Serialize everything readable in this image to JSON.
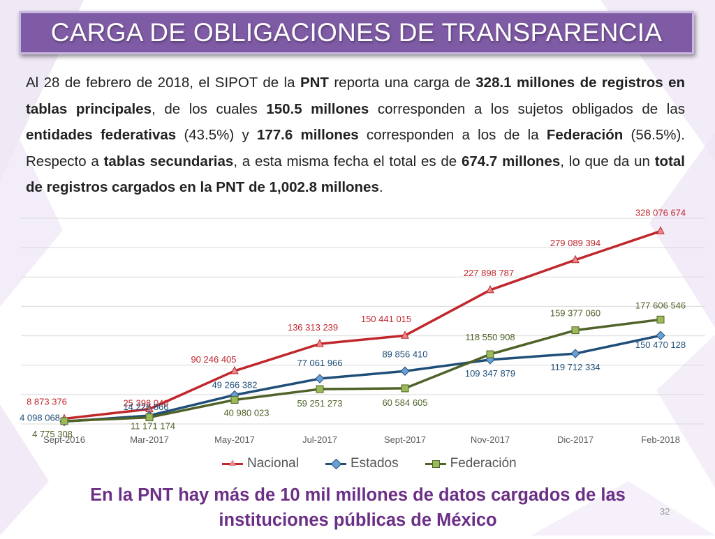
{
  "slide": {
    "title": "CARGA DE OBLIGACIONES DE TRANSPARENCIA",
    "intro": [
      {
        "text": "Al 28 de febrero de 2018, el SIPOT de la ",
        "bold": false
      },
      {
        "text": "PNT",
        "bold": true
      },
      {
        "text": " reporta una carga de ",
        "bold": false
      },
      {
        "text": "328.1 millones de registros en tablas principales",
        "bold": true
      },
      {
        "text": ", de los cuales ",
        "bold": false
      },
      {
        "text": "150.5 millones",
        "bold": true
      },
      {
        "text": " corresponden a los sujetos obligados de las ",
        "bold": false
      },
      {
        "text": "entidades federativas",
        "bold": true
      },
      {
        "text": " (43.5%) y ",
        "bold": false
      },
      {
        "text": "177.6 millones",
        "bold": true
      },
      {
        "text": " corresponden a los de la ",
        "bold": false
      },
      {
        "text": "Federación",
        "bold": true
      },
      {
        "text": " (56.5%). Respecto a ",
        "bold": false
      },
      {
        "text": "tablas secundarias",
        "bold": true
      },
      {
        "text": ", a esta misma fecha el total es de ",
        "bold": false
      },
      {
        "text": "674.7 millones",
        "bold": true
      },
      {
        "text": ", lo que da un ",
        "bold": false
      },
      {
        "text": "total de registros cargados en la PNT de 1,002.8 millones",
        "bold": true
      },
      {
        "text": ".",
        "bold": false
      }
    ],
    "footer": "En la PNT hay más de 10 mil millones de datos cargados de las instituciones públicas de México",
    "page_number": "32"
  },
  "colors": {
    "title_bg": "#7f5ba6",
    "nacional": "#c0272d",
    "estados": "#1f4e79",
    "federacion": "#4f6228",
    "footer_text": "#6b2f86"
  },
  "chart_data": {
    "type": "line",
    "categories": [
      "Sept-2016",
      "Mar-2017",
      "May-2017",
      "Jul-2017",
      "Sept-2017",
      "Nov-2017",
      "Dic-2017",
      "Feb-2018"
    ],
    "series": [
      {
        "name": "Nacional",
        "color": "#c0272d",
        "marker": "triangle",
        "values": [
          8873376,
          25398040,
          90246405,
          136313239,
          150441015,
          227898787,
          279089394,
          328076674
        ],
        "labels": [
          "8 873 376",
          "25 398 040",
          "90 246 405",
          "136 313 239",
          "150 441 015",
          "227 898 787",
          "279 089 394",
          "328 076 674"
        ]
      },
      {
        "name": "Estados",
        "color": "#1f4e79",
        "marker": "diamond",
        "values": [
          4098068,
          14226866,
          49266382,
          77061966,
          89856410,
          109347879,
          119712334,
          150470128
        ],
        "labels": [
          "4 098 068",
          "14 226 866",
          "49 266 382",
          "77 061 966",
          "89 856 410",
          "109 347 879",
          "119 712 334",
          "150 470 128"
        ]
      },
      {
        "name": "Federación",
        "color": "#4f6228",
        "marker": "square",
        "values": [
          4775308,
          11171174,
          40980023,
          59251273,
          60584605,
          118550908,
          159377060,
          177606546
        ],
        "labels": [
          "4 775 308",
          "11 171 174",
          "40 980 023",
          "59 251 273",
          "60 584 605",
          "118 550 908",
          "159 377 060",
          "177 606 546"
        ]
      }
    ],
    "ylim": [
      0,
      350000000
    ],
    "grid": true,
    "legend_position": "bottom",
    "title": "",
    "xlabel": "",
    "ylabel": ""
  }
}
